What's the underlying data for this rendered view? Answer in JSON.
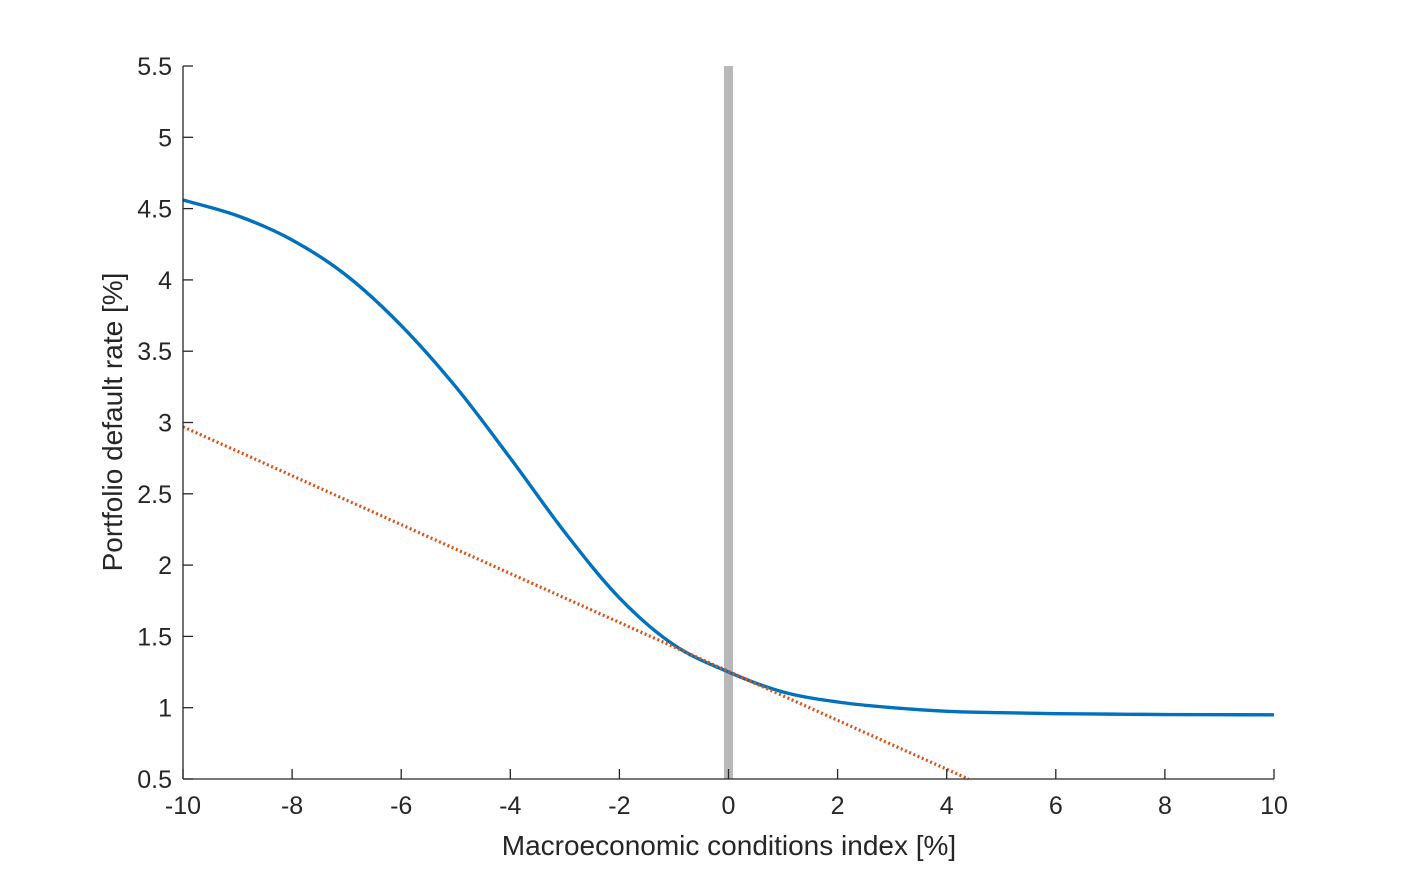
{
  "chart_data": {
    "type": "line",
    "title": "",
    "xlabel": "Macroeconomic conditions index [%]",
    "ylabel": "Portfolio default rate [%]",
    "xlim": [
      -10,
      10
    ],
    "ylim": [
      0.5,
      5.5
    ],
    "xticks": [
      -10,
      -8,
      -6,
      -4,
      -2,
      0,
      2,
      4,
      6,
      8,
      10
    ],
    "yticks": [
      0.5,
      1,
      1.5,
      2,
      2.5,
      3,
      3.5,
      4,
      4.5,
      5,
      5.5
    ],
    "xtick_labels": [
      "-10",
      "-8",
      "-6",
      "-4",
      "-2",
      "0",
      "2",
      "4",
      "6",
      "8",
      "10"
    ],
    "ytick_labels": [
      "0.5",
      "1",
      "1.5",
      "2",
      "2.5",
      "3",
      "3.5",
      "4",
      "4.5",
      "5",
      "5.5"
    ],
    "grid": false,
    "legend": "none",
    "series": [
      {
        "style": "solid",
        "color": "#0072BD",
        "x": [
          -10,
          -9,
          -8,
          -7,
          -6,
          -5,
          -4,
          -3,
          -2,
          -1,
          0,
          1,
          2,
          3,
          4,
          5,
          6,
          7,
          8,
          9,
          10
        ],
        "y": [
          4.56,
          4.45,
          4.28,
          4.03,
          3.68,
          3.25,
          2.75,
          2.23,
          1.77,
          1.44,
          1.25,
          1.11,
          1.04,
          1.0,
          0.975,
          0.965,
          0.958,
          0.955,
          0.952,
          0.951,
          0.95
        ]
      },
      {
        "style": "dotted",
        "color": "#D95319",
        "x": [
          -10,
          4.4
        ],
        "y": [
          2.97,
          0.5
        ]
      }
    ],
    "reference_lines": [
      {
        "orientation": "vertical",
        "x": 0,
        "color": "#B8B8B8"
      }
    ]
  }
}
